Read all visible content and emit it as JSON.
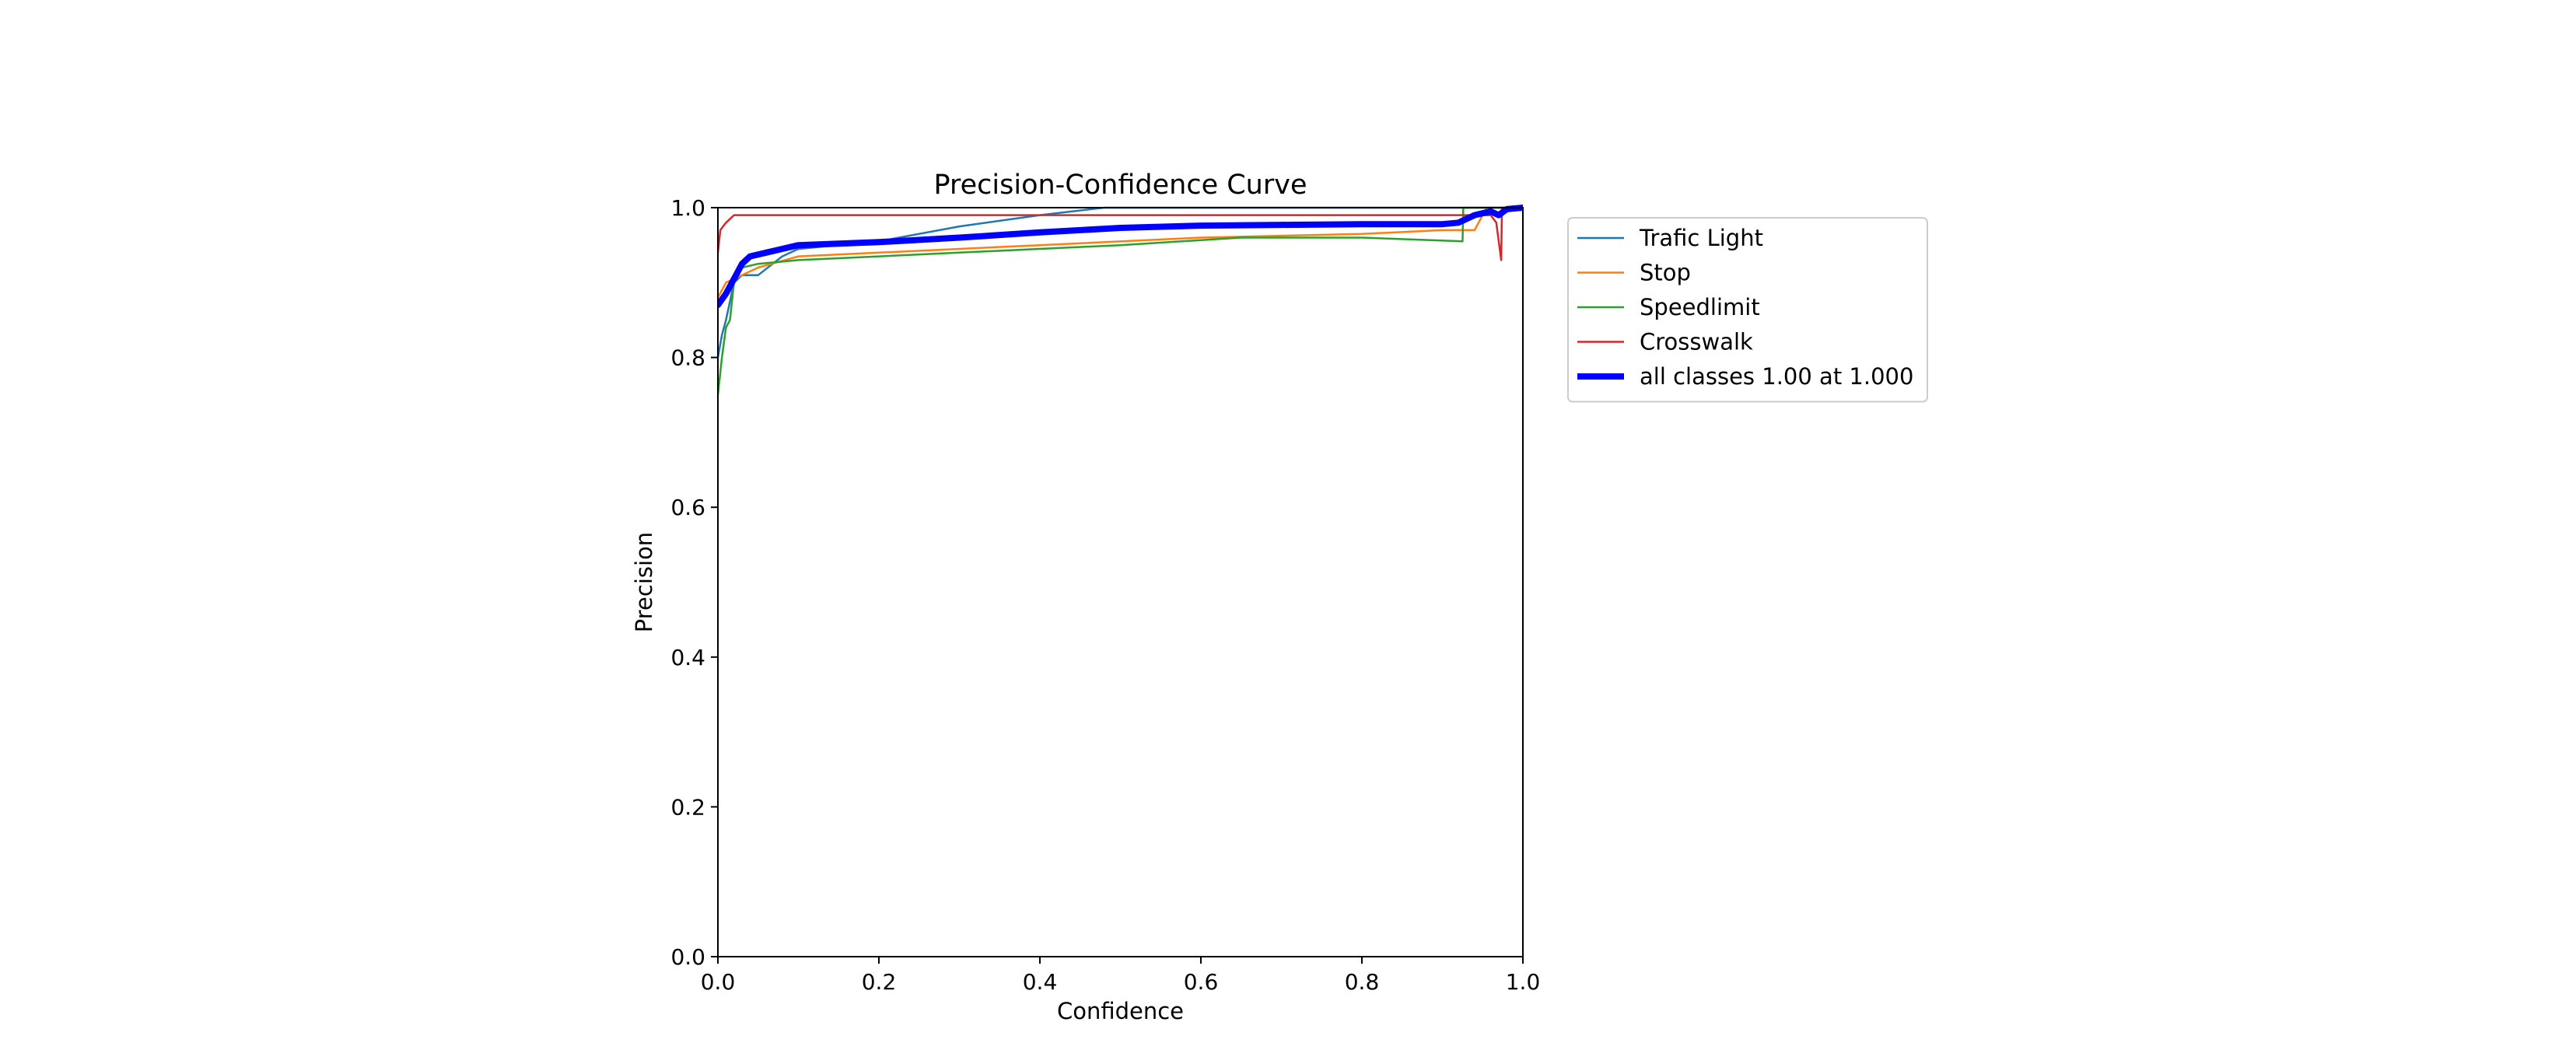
{
  "chart_data": {
    "type": "line",
    "title": "Precision-Confidence Curve",
    "xlabel": "Confidence",
    "ylabel": "Precision",
    "xlim": [
      0,
      1
    ],
    "ylim": [
      0,
      1
    ],
    "xticks": [
      "0.0",
      "0.2",
      "0.4",
      "0.6",
      "0.8",
      "1.0"
    ],
    "yticks": [
      "0.0",
      "0.2",
      "0.4",
      "0.6",
      "0.8",
      "1.0"
    ],
    "grid": false,
    "legend_position": "outside-right-top",
    "series": [
      {
        "name": "Trafic Light",
        "color": "#1f77b4",
        "width": "thin",
        "points": [
          [
            0.0,
            0.8
          ],
          [
            0.005,
            0.83
          ],
          [
            0.01,
            0.85
          ],
          [
            0.02,
            0.9
          ],
          [
            0.03,
            0.91
          ],
          [
            0.05,
            0.91
          ],
          [
            0.08,
            0.935
          ],
          [
            0.1,
            0.945
          ],
          [
            0.2,
            0.955
          ],
          [
            0.3,
            0.975
          ],
          [
            0.4,
            0.99
          ],
          [
            0.48,
            1.0
          ],
          [
            1.0,
            1.0
          ]
        ]
      },
      {
        "name": "Stop",
        "color": "#ff7f0e",
        "width": "thin",
        "points": [
          [
            0.0,
            0.88
          ],
          [
            0.01,
            0.9
          ],
          [
            0.02,
            0.905
          ],
          [
            0.03,
            0.91
          ],
          [
            0.05,
            0.92
          ],
          [
            0.1,
            0.935
          ],
          [
            0.2,
            0.94
          ],
          [
            0.4,
            0.95
          ],
          [
            0.6,
            0.96
          ],
          [
            0.8,
            0.965
          ],
          [
            0.9,
            0.97
          ],
          [
            0.94,
            0.97
          ],
          [
            0.955,
            1.0
          ],
          [
            1.0,
            1.0
          ]
        ]
      },
      {
        "name": "Speedlimit",
        "color": "#2ca02c",
        "width": "thin",
        "points": [
          [
            0.0,
            0.75
          ],
          [
            0.005,
            0.8
          ],
          [
            0.01,
            0.84
          ],
          [
            0.015,
            0.85
          ],
          [
            0.02,
            0.9
          ],
          [
            0.03,
            0.92
          ],
          [
            0.05,
            0.925
          ],
          [
            0.1,
            0.93
          ],
          [
            0.3,
            0.94
          ],
          [
            0.5,
            0.95
          ],
          [
            0.65,
            0.96
          ],
          [
            0.8,
            0.96
          ],
          [
            0.925,
            0.955
          ],
          [
            0.926,
            1.0
          ],
          [
            1.0,
            1.0
          ]
        ]
      },
      {
        "name": "Crosswalk",
        "color": "#d62728",
        "width": "thin",
        "points": [
          [
            0.0,
            0.94
          ],
          [
            0.003,
            0.97
          ],
          [
            0.01,
            0.98
          ],
          [
            0.02,
            0.99
          ],
          [
            0.2,
            0.99
          ],
          [
            0.5,
            0.99
          ],
          [
            0.8,
            0.99
          ],
          [
            0.9,
            0.99
          ],
          [
            0.94,
            0.99
          ],
          [
            0.96,
            0.99
          ],
          [
            0.967,
            0.98
          ],
          [
            0.973,
            0.93
          ],
          [
            0.974,
            1.0
          ],
          [
            1.0,
            1.0
          ]
        ]
      },
      {
        "name": "all classes 1.00 at 1.000",
        "color": "#0000ff",
        "width": "thick",
        "points": [
          [
            0.0,
            0.87
          ],
          [
            0.01,
            0.885
          ],
          [
            0.02,
            0.905
          ],
          [
            0.03,
            0.925
          ],
          [
            0.04,
            0.935
          ],
          [
            0.06,
            0.94
          ],
          [
            0.08,
            0.945
          ],
          [
            0.1,
            0.95
          ],
          [
            0.15,
            0.952
          ],
          [
            0.2,
            0.954
          ],
          [
            0.3,
            0.96
          ],
          [
            0.4,
            0.967
          ],
          [
            0.5,
            0.973
          ],
          [
            0.6,
            0.976
          ],
          [
            0.7,
            0.977
          ],
          [
            0.8,
            0.978
          ],
          [
            0.9,
            0.978
          ],
          [
            0.92,
            0.98
          ],
          [
            0.94,
            0.99
          ],
          [
            0.96,
            0.995
          ],
          [
            0.97,
            0.99
          ],
          [
            0.98,
            0.998
          ],
          [
            1.0,
            1.0
          ]
        ]
      }
    ]
  }
}
